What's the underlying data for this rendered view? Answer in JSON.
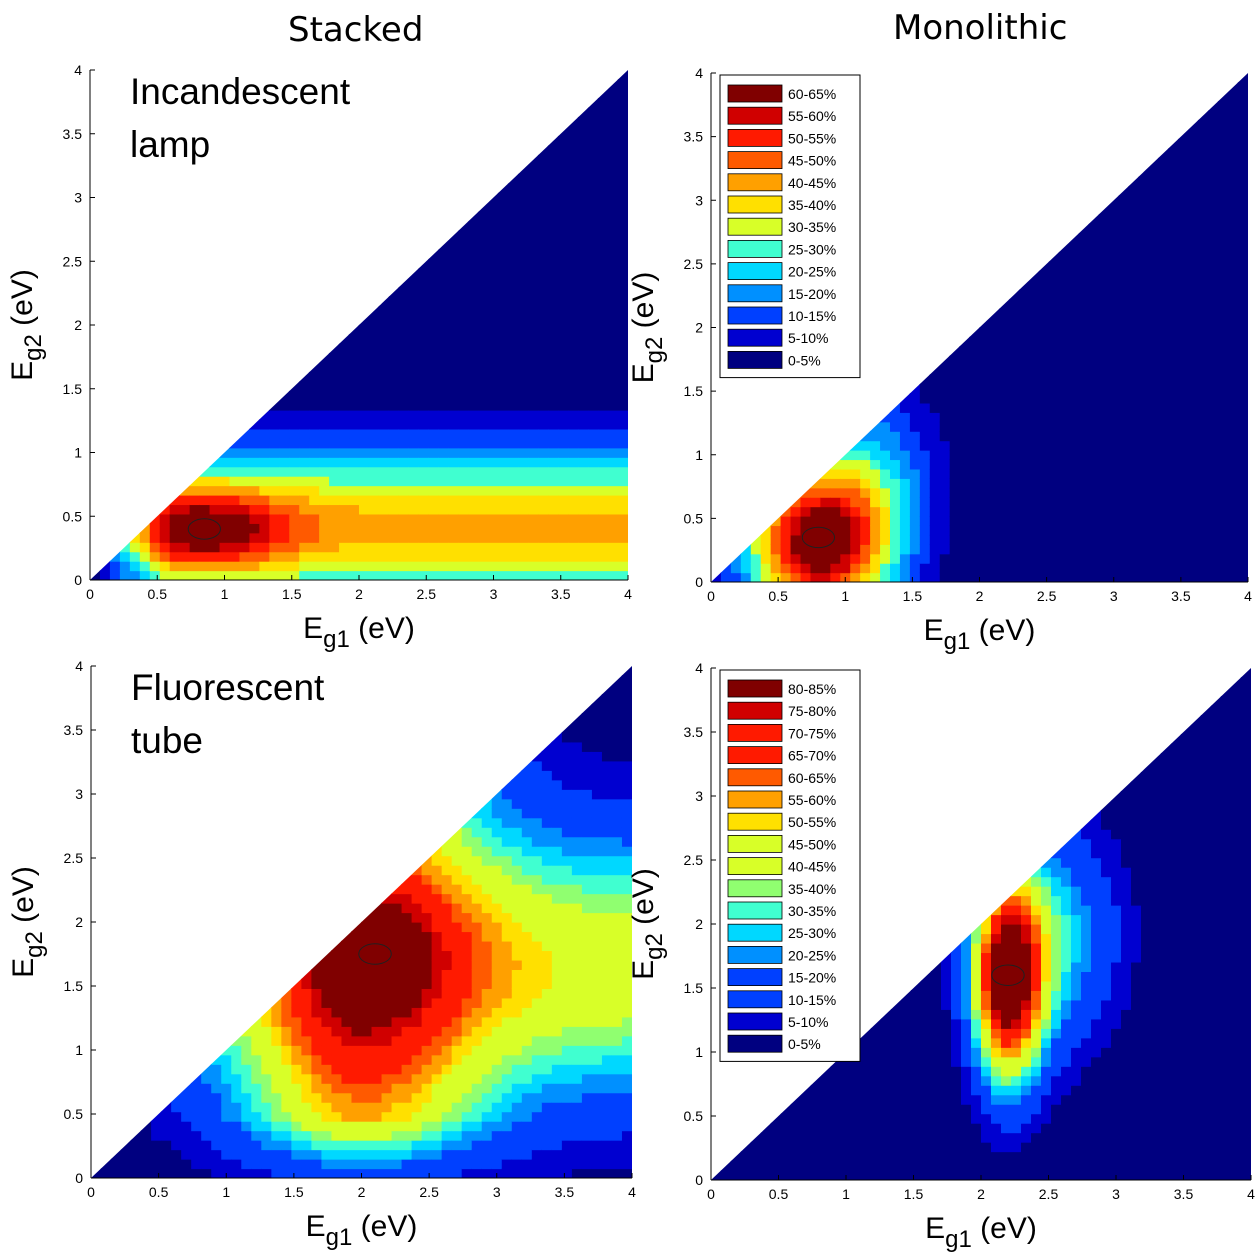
{
  "column_titles": {
    "stacked": "Stacked",
    "monolithic": "Monolithic"
  },
  "colors": {
    "jet": [
      "#000080",
      "#0000d0",
      "#0040ff",
      "#0090ff",
      "#00d8ff",
      "#40ffd0",
      "#90ff70",
      "#d8ff28",
      "#ffe000",
      "#ffa000",
      "#ff5a00",
      "#ff1a00",
      "#d00000",
      "#800000"
    ]
  },
  "chart_data": [
    {
      "type": "heatmap",
      "panel": "stacked-incandescent",
      "annotation": [
        "Incandescent",
        "lamp"
      ],
      "xlabel": {
        "main": "E",
        "sub": "g1",
        "unit": " (eV)"
      },
      "ylabel": {
        "main": "E",
        "sub": "g2",
        "unit": " (eV)"
      },
      "xlim": [
        0,
        4
      ],
      "ylim": [
        0,
        4
      ],
      "xticks": [
        "0",
        "0.5",
        "1",
        "1.5",
        "2",
        "2.5",
        "3",
        "3.5",
        "4"
      ],
      "yticks": [
        "0",
        "0.5",
        "1",
        "1.5",
        "2",
        "2.5",
        "3",
        "3.5",
        "4"
      ],
      "levels": 13,
      "peak": {
        "x": 0.85,
        "y": 0.4,
        "value_range": "60-65%"
      },
      "legend": []
    },
    {
      "type": "heatmap",
      "panel": "monolithic-incandescent",
      "annotation": [],
      "xlabel": {
        "main": "E",
        "sub": "g1",
        "unit": " (eV)"
      },
      "ylabel": {
        "main": "E",
        "sub": "g2",
        "unit": " (eV)"
      },
      "xlim": [
        0,
        4
      ],
      "ylim": [
        0,
        4
      ],
      "xticks": [
        "0",
        "0.5",
        "1",
        "1.5",
        "2",
        "2.5",
        "3",
        "3.5",
        "4"
      ],
      "yticks": [
        "0",
        "0.5",
        "1",
        "1.5",
        "2",
        "2.5",
        "3",
        "3.5",
        "4"
      ],
      "levels": 13,
      "peak": {
        "x": 0.8,
        "y": 0.35,
        "value_range": "60-65%"
      },
      "legend": [
        "60-65%",
        "55-60%",
        "50-55%",
        "45-50%",
        "40-45%",
        "35-40%",
        "30-35%",
        "25-30%",
        "20-25%",
        "15-20%",
        "10-15%",
        "5-10%",
        "0-5%"
      ]
    },
    {
      "type": "heatmap",
      "panel": "stacked-fluorescent",
      "annotation": [
        "Fluorescent",
        "tube"
      ],
      "xlabel": {
        "main": "E",
        "sub": "g1",
        "unit": " (eV)"
      },
      "ylabel": {
        "main": "E",
        "sub": "g2",
        "unit": " (eV)"
      },
      "xlim": [
        0,
        4
      ],
      "ylim": [
        0,
        4
      ],
      "xticks": [
        "0",
        "0.5",
        "1",
        "1.5",
        "2",
        "2.5",
        "3",
        "3.5",
        "4"
      ],
      "yticks": [
        "0",
        "0.5",
        "1",
        "1.5",
        "2",
        "2.5",
        "3",
        "3.5",
        "4"
      ],
      "levels": 17,
      "peak": {
        "x": 2.1,
        "y": 1.75,
        "value_range": "80-85%"
      },
      "legend": []
    },
    {
      "type": "heatmap",
      "panel": "monolithic-fluorescent",
      "annotation": [],
      "xlabel": {
        "main": "E",
        "sub": "g1",
        "unit": " (eV)"
      },
      "ylabel": {
        "main": "E",
        "sub": "g2",
        "unit": " (eV)"
      },
      "xlim": [
        0,
        4
      ],
      "ylim": [
        0,
        4
      ],
      "xticks": [
        "0",
        "0.5",
        "1",
        "1.5",
        "2",
        "2.5",
        "3",
        "3.5",
        "4"
      ],
      "yticks": [
        "0",
        "0.5",
        "1",
        "1.5",
        "2",
        "2.5",
        "3",
        "3.5",
        "4"
      ],
      "levels": 17,
      "peak": {
        "x": 2.2,
        "y": 1.6,
        "value_range": "80-85%"
      },
      "legend": [
        "80-85%",
        "75-80%",
        "70-75%",
        "65-70%",
        "60-65%",
        "55-60%",
        "50-55%",
        "45-50%",
        "40-45%",
        "35-40%",
        "30-35%",
        "25-30%",
        "20-25%",
        "15-20%",
        "10-15%",
        "5-10%",
        "0-5%"
      ]
    }
  ]
}
